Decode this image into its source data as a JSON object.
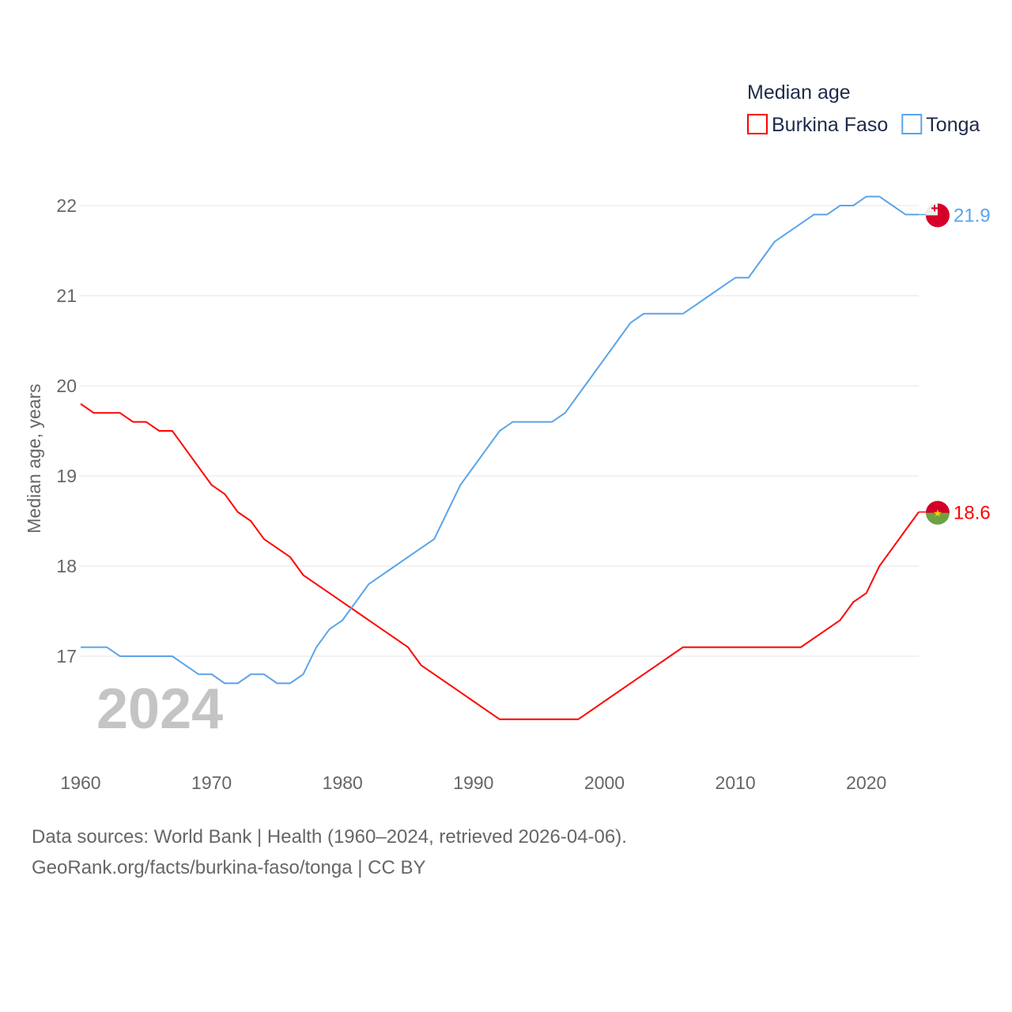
{
  "chart_data": {
    "type": "line",
    "title": "Median age",
    "ylabel": "Median age, years",
    "xlabel": "",
    "year_overlay": "2024",
    "xlim": [
      1960,
      2024
    ],
    "ylim": [
      16.0,
      22.6
    ],
    "x_ticks": [
      1960,
      1970,
      1980,
      1990,
      2000,
      2010,
      2020
    ],
    "y_ticks": [
      17,
      18,
      19,
      20,
      21,
      22
    ],
    "grid": true,
    "legend_placement": "top-right",
    "x": [
      1960,
      1961,
      1962,
      1963,
      1964,
      1965,
      1966,
      1967,
      1968,
      1969,
      1970,
      1971,
      1972,
      1973,
      1974,
      1975,
      1976,
      1977,
      1978,
      1979,
      1980,
      1981,
      1982,
      1983,
      1984,
      1985,
      1986,
      1987,
      1988,
      1989,
      1990,
      1991,
      1992,
      1993,
      1994,
      1995,
      1996,
      1997,
      1998,
      1999,
      2000,
      2001,
      2002,
      2003,
      2004,
      2005,
      2006,
      2007,
      2008,
      2009,
      2010,
      2011,
      2012,
      2013,
      2014,
      2015,
      2016,
      2017,
      2018,
      2019,
      2020,
      2021,
      2022,
      2023,
      2024
    ],
    "series": [
      {
        "name": "Burkina Faso",
        "color": "#ff0000",
        "end_label": "18.6",
        "flag": "burkina-faso-flag",
        "values": [
          19.8,
          19.7,
          19.7,
          19.7,
          19.6,
          19.6,
          19.5,
          19.5,
          19.3,
          19.1,
          18.9,
          18.8,
          18.6,
          18.5,
          18.3,
          18.2,
          18.1,
          17.9,
          17.8,
          17.7,
          17.6,
          17.5,
          17.4,
          17.3,
          17.2,
          17.1,
          16.9,
          16.8,
          16.7,
          16.6,
          16.5,
          16.4,
          16.3,
          16.3,
          16.3,
          16.3,
          16.3,
          16.3,
          16.3,
          16.4,
          16.5,
          16.6,
          16.7,
          16.8,
          16.9,
          17.0,
          17.1,
          17.1,
          17.1,
          17.1,
          17.1,
          17.1,
          17.1,
          17.1,
          17.1,
          17.1,
          17.2,
          17.3,
          17.4,
          17.6,
          17.7,
          18.0,
          18.2,
          18.4,
          18.6
        ]
      },
      {
        "name": "Tonga",
        "color": "#5ba4e8",
        "end_label": "21.9",
        "flag": "tonga-flag",
        "values": [
          17.1,
          17.1,
          17.1,
          17.0,
          17.0,
          17.0,
          17.0,
          17.0,
          16.9,
          16.8,
          16.8,
          16.7,
          16.7,
          16.8,
          16.8,
          16.7,
          16.7,
          16.8,
          17.1,
          17.3,
          17.4,
          17.6,
          17.8,
          17.9,
          18.0,
          18.1,
          18.2,
          18.3,
          18.6,
          18.9,
          19.1,
          19.3,
          19.5,
          19.6,
          19.6,
          19.6,
          19.6,
          19.7,
          19.9,
          20.1,
          20.3,
          20.5,
          20.7,
          20.8,
          20.8,
          20.8,
          20.8,
          20.9,
          21.0,
          21.1,
          21.2,
          21.2,
          21.4,
          21.6,
          21.7,
          21.8,
          21.9,
          21.9,
          22.0,
          22.0,
          22.1,
          22.1,
          22.0,
          21.9,
          21.9
        ]
      }
    ]
  },
  "footer": {
    "line1": "Data sources: World Bank | Health (1960–2024, retrieved 2026-04-06).",
    "line2": "GeoRank.org/facts/burkina-faso/tonga | CC BY"
  }
}
